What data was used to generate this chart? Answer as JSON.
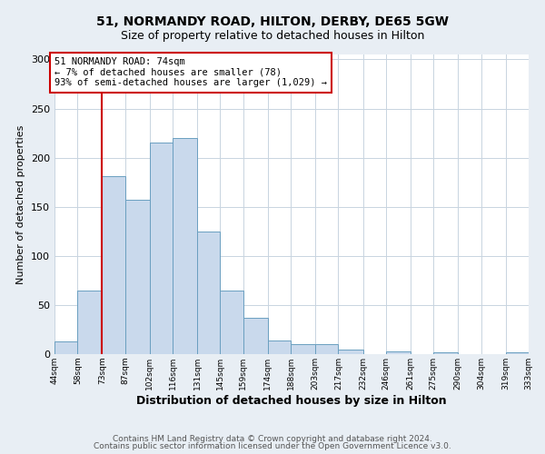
{
  "title": "51, NORMANDY ROAD, HILTON, DERBY, DE65 5GW",
  "subtitle": "Size of property relative to detached houses in Hilton",
  "xlabel": "Distribution of detached houses by size in Hilton",
  "ylabel": "Number of detached properties",
  "bin_edges": [
    44,
    58,
    73,
    87,
    102,
    116,
    131,
    145,
    159,
    174,
    188,
    203,
    217,
    232,
    246,
    261,
    275,
    290,
    304,
    319,
    333
  ],
  "bar_heights": [
    13,
    65,
    181,
    157,
    215,
    220,
    125,
    65,
    37,
    14,
    10,
    10,
    5,
    0,
    3,
    0,
    2,
    0,
    0,
    2
  ],
  "bar_face_color": "#c9d9ec",
  "bar_edge_color": "#6a9fc0",
  "vline_x": 73,
  "vline_color": "#cc0000",
  "annotation_line1": "51 NORMANDY ROAD: 74sqm",
  "annotation_line2": "← 7% of detached houses are smaller (78)",
  "annotation_line3": "93% of semi-detached houses are larger (1,029) →",
  "annotation_box_color": "#cc0000",
  "ylim": [
    0,
    305
  ],
  "yticks": [
    0,
    50,
    100,
    150,
    200,
    250,
    300
  ],
  "tick_labels": [
    "44sqm",
    "58sqm",
    "73sqm",
    "87sqm",
    "102sqm",
    "116sqm",
    "131sqm",
    "145sqm",
    "159sqm",
    "174sqm",
    "188sqm",
    "203sqm",
    "217sqm",
    "232sqm",
    "246sqm",
    "261sqm",
    "275sqm",
    "290sqm",
    "304sqm",
    "319sqm",
    "333sqm"
  ],
  "footnote1": "Contains HM Land Registry data © Crown copyright and database right 2024.",
  "footnote2": "Contains public sector information licensed under the Open Government Licence v3.0.",
  "background_color": "#e8eef4",
  "plot_bg_color": "#ffffff",
  "grid_color": "#c8d4e0",
  "title_fontsize": 10,
  "subtitle_fontsize": 9,
  "xlabel_fontsize": 9,
  "ylabel_fontsize": 8,
  "footnote_fontsize": 6.5
}
